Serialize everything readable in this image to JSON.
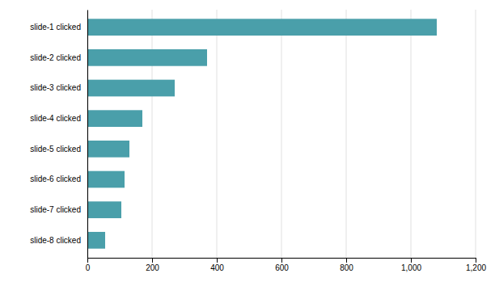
{
  "chart_data": {
    "type": "bar",
    "orientation": "horizontal",
    "categories": [
      "slide-1 clicked",
      "slide-2 clicked",
      "slide-3 clicked",
      "slide-4 clicked",
      "slide-5 clicked",
      "slide-6 clicked",
      "slide-7 clicked",
      "slide-8 clicked"
    ],
    "values": [
      1080,
      370,
      270,
      170,
      130,
      115,
      105,
      55
    ],
    "color": "#4a9faa",
    "xlim": [
      0,
      1200
    ],
    "xticks": [
      0,
      200,
      400,
      600,
      800,
      {
        "value": 1000,
        "label": "1,000"
      },
      {
        "value": 1200,
        "label": "1,200"
      }
    ],
    "grid": true
  }
}
